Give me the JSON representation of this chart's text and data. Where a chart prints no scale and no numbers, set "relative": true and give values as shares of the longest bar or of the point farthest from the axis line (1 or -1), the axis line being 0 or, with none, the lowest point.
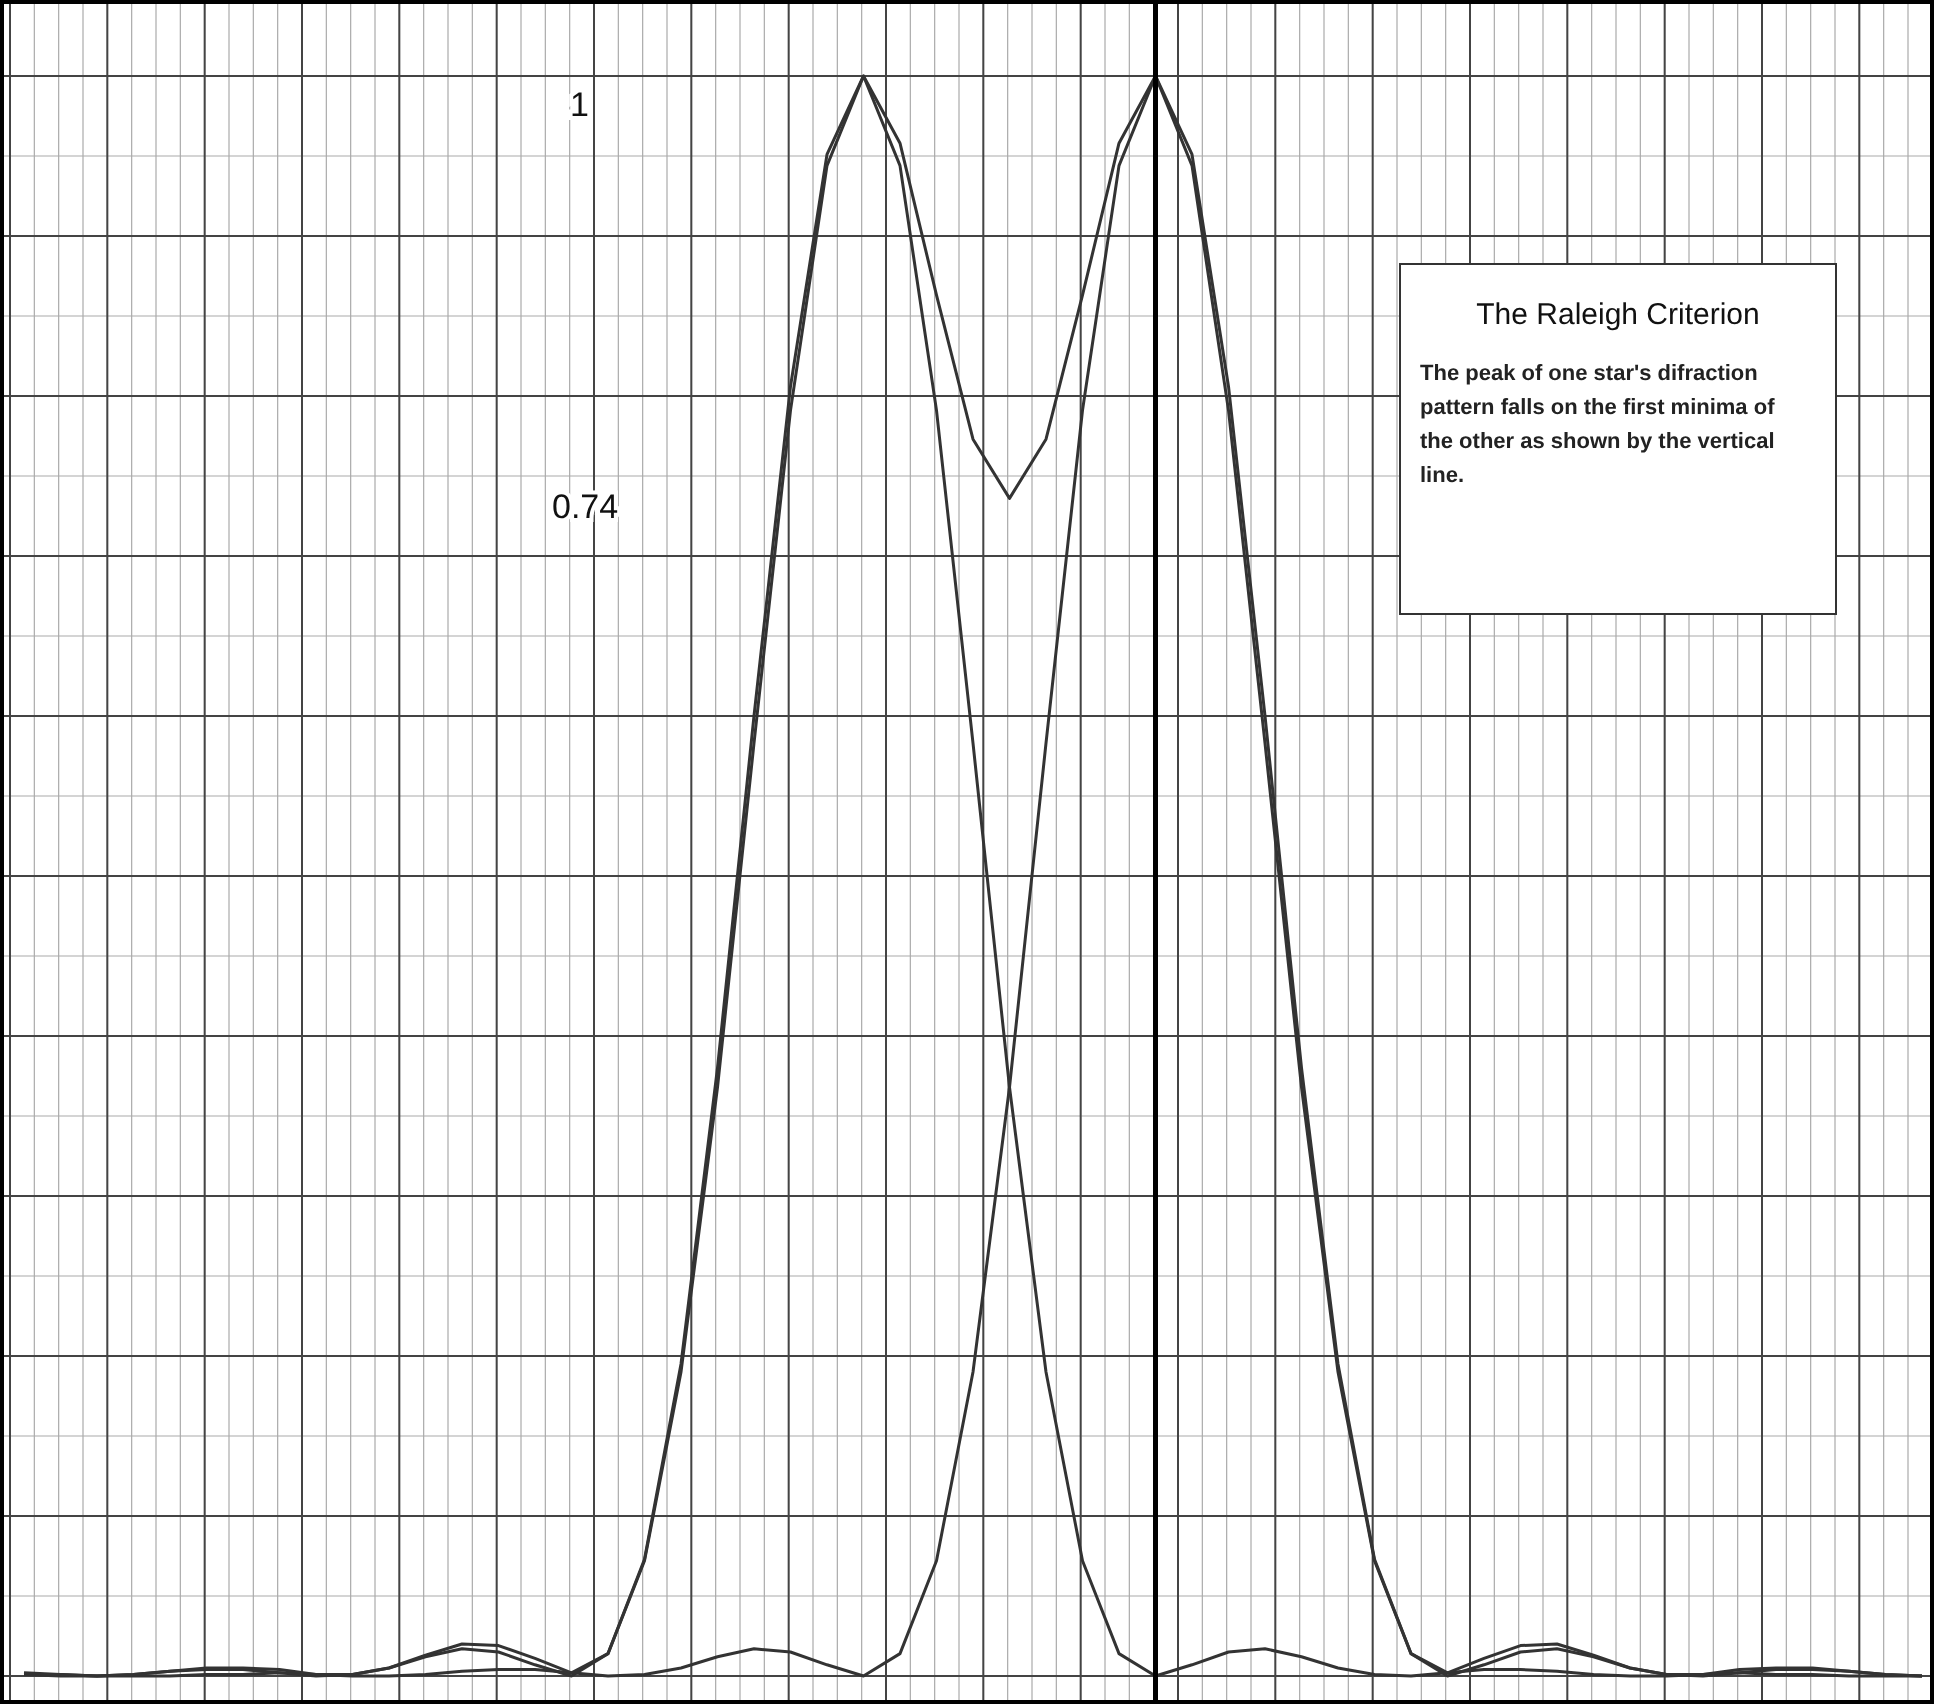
{
  "chart_data": {
    "type": "line",
    "title": "The Raleigh Criterion",
    "relative": true,
    "categories": [
      null,
      null,
      null,
      null,
      null,
      null,
      null,
      null,
      null,
      null,
      null,
      null,
      null,
      null,
      null,
      null,
      null,
      null,
      null,
      null,
      null,
      null,
      null,
      null,
      null,
      null,
      null,
      null,
      null,
      null,
      null,
      null,
      null,
      null,
      null,
      null,
      null,
      null,
      null,
      null,
      null,
      null,
      null,
      null,
      null,
      null,
      null,
      null,
      null,
      null,
      null,
      null,
      null
    ],
    "series": [
      {
        "color": "#333333",
        "values": [
          0.001,
          0,
          0,
          0.001,
          0.003,
          0.004,
          0.004,
          0.002,
          0,
          0.001,
          0.005,
          0.012,
          0.017,
          0.015,
          0.007,
          0,
          0.014,
          0.072,
          0.19,
          0.368,
          0.583,
          0.791,
          0.944,
          1,
          0.944,
          0.791,
          0.583,
          0.368,
          0.19,
          0.072,
          0.014,
          0,
          0.007,
          0.015,
          0.017,
          0.012,
          0.005,
          0.001,
          0,
          0.002,
          0.004,
          0.004,
          0.003,
          0.001,
          0,
          0,
          0.001,
          0.002,
          0.001,
          0.001,
          0,
          0,
          0
        ]
      },
      {
        "color": "#333333",
        "values": [
          0.001,
          0.001,
          0,
          0,
          0,
          0.001,
          0.001,
          0.002,
          0.001,
          0,
          0,
          0.001,
          0.003,
          0.004,
          0.004,
          0.002,
          0,
          0.001,
          0.005,
          0.012,
          0.017,
          0.015,
          0.007,
          0,
          0.014,
          0.072,
          0.19,
          0.368,
          0.583,
          0.791,
          0.944,
          1,
          0.944,
          0.791,
          0.583,
          0.368,
          0.19,
          0.072,
          0.014,
          0,
          0.007,
          0.015,
          0.017,
          0.012,
          0.005,
          0.001,
          0,
          0.002,
          0.004,
          0.004,
          0.003,
          0.001,
          0
        ]
      },
      {
        "color": "#333333",
        "values": [
          0.002,
          0.001,
          0,
          0.001,
          0.003,
          0.005,
          0.005,
          0.004,
          0.001,
          0.001,
          0.005,
          0.013,
          0.02,
          0.019,
          0.011,
          0.002,
          0.014,
          0.073,
          0.195,
          0.38,
          0.6,
          0.806,
          0.951,
          1,
          0.958,
          0.863,
          0.773,
          0.736,
          0.773,
          0.863,
          0.958,
          1,
          0.951,
          0.806,
          0.6,
          0.38,
          0.195,
          0.073,
          0.014,
          0.002,
          0.011,
          0.019,
          0.02,
          0.013,
          0.005,
          0.001,
          0.001,
          0.004,
          0.005,
          0.005,
          0.003,
          0.001,
          0
        ]
      }
    ],
    "grid": true,
    "marker": "none",
    "line_style": "solid",
    "annotations": [
      "1",
      "0.74",
      "The peak of one star's difraction pattern falls on the first minima of the other as shown by the vertical line."
    ]
  }
}
